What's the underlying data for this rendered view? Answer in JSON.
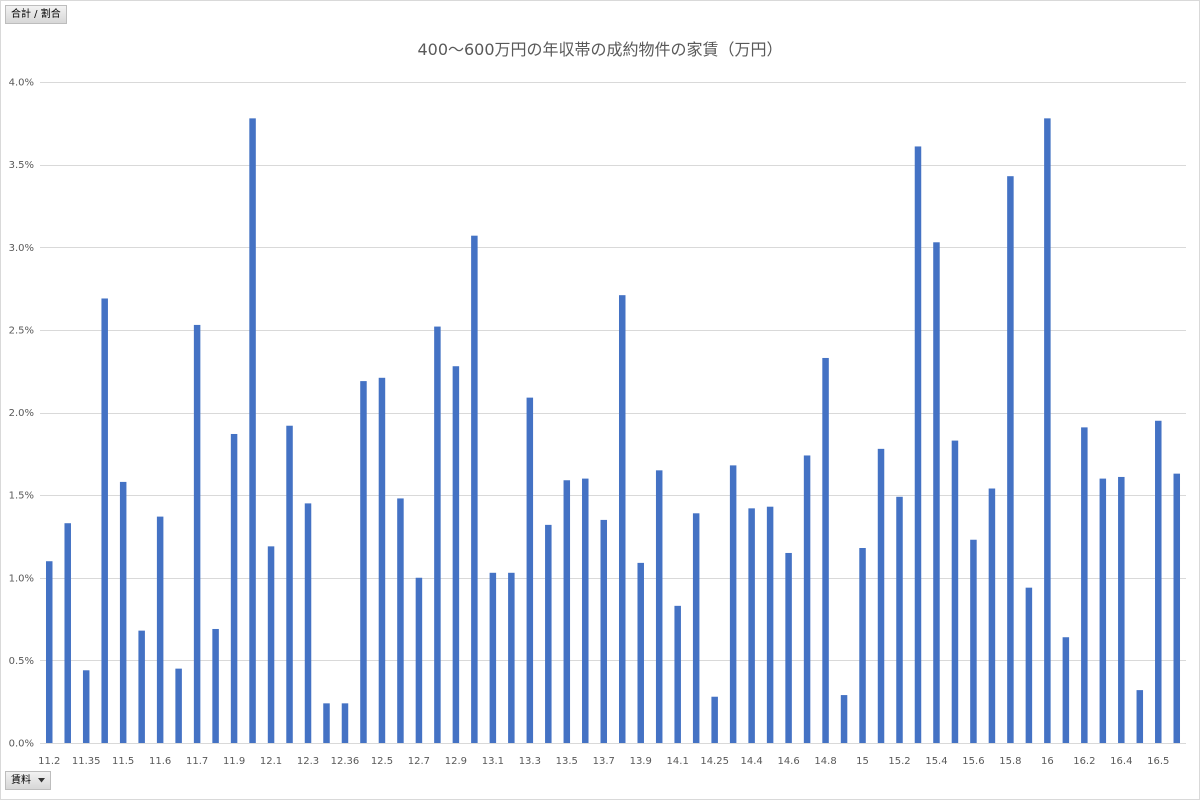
{
  "pivot_buttons": {
    "value_field": "合計 / 割合",
    "axis_field": "賃料"
  },
  "icons": {
    "axis_field_dropdown": "dropdown-arrow-icon"
  },
  "colors": {
    "bar": "#4472C4",
    "gridline": "#D9D9D9",
    "text": "#595959",
    "border": "#D9D9D9"
  },
  "chart_data": {
    "type": "bar",
    "title": "400〜600万円の年収帯の成約物件の家賃（万円）",
    "categories": [
      "11.2",
      "",
      "11.35",
      "",
      "11.5",
      "",
      "11.6",
      "",
      "11.7",
      "",
      "11.9",
      "",
      "12.1",
      "",
      "12.3",
      "",
      "12.36",
      "",
      "12.5",
      "",
      "12.7",
      "",
      "12.9",
      "",
      "13.1",
      "",
      "13.3",
      "",
      "13.5",
      "",
      "13.7",
      "",
      "13.9",
      "",
      "14.1",
      "",
      "14.25",
      "",
      "14.4",
      "",
      "14.6",
      "",
      "14.8",
      "",
      "15",
      "",
      "15.2",
      "",
      "15.4",
      "",
      "15.6",
      "",
      "15.8",
      "",
      "16",
      "",
      "16.2",
      "",
      "16.4",
      "",
      "16.5",
      ""
    ],
    "values": [
      1.1,
      1.33,
      0.44,
      2.69,
      1.58,
      0.68,
      1.37,
      0.45,
      2.53,
      0.69,
      1.87,
      3.78,
      1.19,
      1.92,
      1.45,
      0.24,
      0.24,
      2.19,
      2.21,
      1.48,
      1.0,
      2.52,
      2.28,
      3.07,
      1.03,
      1.03,
      2.09,
      1.32,
      1.59,
      1.6,
      1.35,
      2.71,
      1.09,
      1.65,
      0.83,
      1.39,
      0.28,
      1.68,
      1.42,
      1.43,
      1.15,
      1.74,
      2.33,
      0.29,
      1.18,
      1.78,
      1.49,
      3.61,
      3.03,
      1.83,
      1.23,
      1.54,
      3.43,
      0.94,
      3.78,
      0.64,
      1.91,
      1.6,
      1.61,
      0.32,
      1.95,
      1.63
    ],
    "ylim": [
      0,
      4
    ],
    "yticks": [
      0,
      0.5,
      1,
      1.5,
      2,
      2.5,
      3,
      3.5,
      4
    ],
    "ytick_labels": [
      "0.0%",
      "0.5%",
      "1.0%",
      "1.5%",
      "2.0%",
      "2.5%",
      "3.0%",
      "3.5%",
      "4.0%"
    ],
    "grid": true,
    "legend": false
  }
}
